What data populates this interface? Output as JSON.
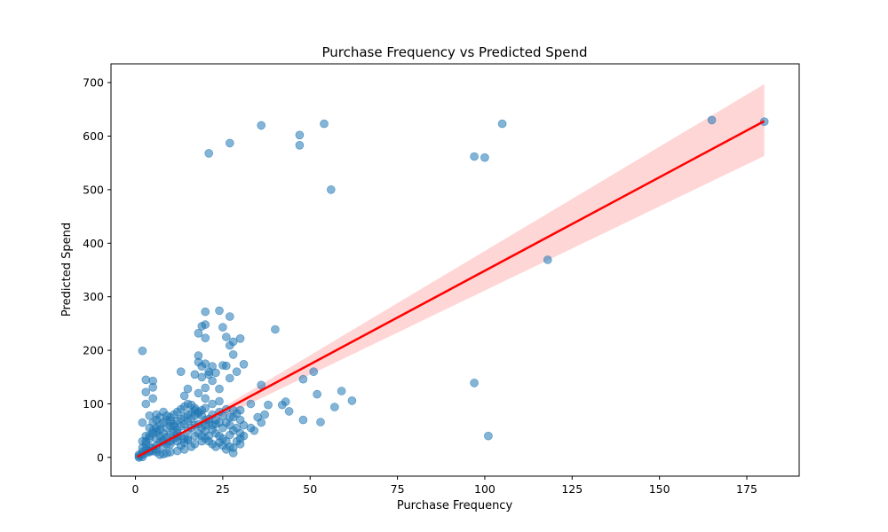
{
  "chart_data": {
    "type": "scatter",
    "title": "Purchase Frequency vs Predicted Spend",
    "xlabel": "Purchase Frequency",
    "ylabel": "Predicted Spend",
    "xlim": [
      -7,
      190
    ],
    "ylim": [
      -35,
      735
    ],
    "xticks": [
      0,
      25,
      50,
      75,
      100,
      125,
      150,
      175
    ],
    "yticks": [
      0,
      100,
      200,
      300,
      400,
      500,
      600,
      700
    ],
    "grid": false,
    "legend": "none",
    "point_color": "#1f77b4",
    "point_alpha": 0.55,
    "regression": {
      "color": "#ff0000",
      "band_color": "#ff9999",
      "x_start": 0.5,
      "x_end": 180,
      "y_start": 1,
      "y_end": 628,
      "ci_lower_end": 563,
      "ci_upper_end": 697
    },
    "series": [
      {
        "values": [
          [
            2,
            199
          ],
          [
            3,
            145
          ],
          [
            5,
            143
          ],
          [
            5,
            131
          ],
          [
            3,
            122
          ],
          [
            3,
            100
          ],
          [
            2,
            65
          ],
          [
            4,
            78
          ],
          [
            6,
            80
          ],
          [
            5,
            110
          ],
          [
            20,
            272
          ],
          [
            24,
            274
          ],
          [
            27,
            263
          ],
          [
            19,
            245
          ],
          [
            20,
            248
          ],
          [
            18,
            232
          ],
          [
            20,
            223
          ],
          [
            25,
            243
          ],
          [
            26,
            225
          ],
          [
            28,
            216
          ],
          [
            30,
            222
          ],
          [
            27,
            209
          ],
          [
            21,
            568
          ],
          [
            27,
            587
          ],
          [
            36,
            620
          ],
          [
            47,
            602
          ],
          [
            47,
            583
          ],
          [
            54,
            623
          ],
          [
            56,
            500
          ],
          [
            97,
            562
          ],
          [
            100,
            560
          ],
          [
            105,
            623
          ],
          [
            165,
            630
          ],
          [
            180,
            627
          ],
          [
            118,
            369
          ],
          [
            40,
            239
          ],
          [
            97,
            139
          ],
          [
            101,
            40
          ],
          [
            36,
            135
          ],
          [
            48,
            146
          ],
          [
            51,
            160
          ],
          [
            59,
            124
          ],
          [
            62,
            106
          ],
          [
            57,
            94
          ],
          [
            52,
            118
          ],
          [
            53,
            66
          ],
          [
            48,
            70
          ],
          [
            44,
            86
          ],
          [
            43,
            104
          ],
          [
            42,
            98
          ],
          [
            38,
            98
          ],
          [
            37,
            80
          ],
          [
            36,
            65
          ],
          [
            35,
            75
          ],
          [
            34,
            50
          ],
          [
            33,
            100
          ],
          [
            33,
            55
          ],
          [
            30,
            25
          ],
          [
            28,
            8
          ],
          [
            18,
            190
          ],
          [
            20,
            175
          ],
          [
            22,
            170
          ],
          [
            25,
            172
          ],
          [
            21,
            160
          ],
          [
            23,
            158
          ],
          [
            18,
            178
          ],
          [
            19,
            150
          ],
          [
            22,
            143
          ],
          [
            20,
            130
          ],
          [
            24,
            128
          ],
          [
            27,
            148
          ],
          [
            28,
            192
          ],
          [
            31,
            174
          ],
          [
            29,
            160
          ],
          [
            26,
            171
          ],
          [
            13,
            160
          ],
          [
            15,
            128
          ],
          [
            14,
            115
          ],
          [
            17,
            155
          ],
          [
            19,
            170
          ],
          [
            21,
            155
          ],
          [
            18,
            120
          ],
          [
            20,
            110
          ],
          [
            22,
            100
          ],
          [
            24,
            105
          ],
          [
            26,
            90
          ],
          [
            28,
            75
          ],
          [
            30,
            88
          ],
          [
            27,
            60
          ],
          [
            25,
            55
          ],
          [
            22,
            60
          ],
          [
            20,
            50
          ],
          [
            17,
            40
          ],
          [
            15,
            35
          ],
          [
            12,
            30
          ],
          [
            10,
            25
          ],
          [
            8,
            20
          ],
          [
            6,
            15
          ],
          [
            4,
            10
          ],
          [
            2,
            5
          ],
          [
            1,
            2
          ],
          [
            1,
            0
          ],
          [
            2,
            1
          ],
          [
            3,
            8
          ],
          [
            4,
            12
          ],
          [
            5,
            18
          ],
          [
            6,
            22
          ],
          [
            7,
            28
          ],
          [
            8,
            32
          ],
          [
            9,
            38
          ],
          [
            10,
            42
          ],
          [
            11,
            48
          ],
          [
            12,
            52
          ],
          [
            13,
            58
          ],
          [
            14,
            62
          ],
          [
            15,
            68
          ],
          [
            16,
            72
          ],
          [
            17,
            78
          ],
          [
            18,
            82
          ],
          [
            19,
            88
          ],
          [
            20,
            92
          ],
          [
            3,
            30
          ],
          [
            4,
            40
          ],
          [
            5,
            50
          ],
          [
            6,
            55
          ],
          [
            7,
            60
          ],
          [
            8,
            65
          ],
          [
            9,
            70
          ],
          [
            10,
            75
          ],
          [
            11,
            80
          ],
          [
            12,
            85
          ],
          [
            13,
            90
          ],
          [
            14,
            95
          ],
          [
            15,
            100
          ],
          [
            16,
            98
          ],
          [
            17,
            92
          ],
          [
            18,
            85
          ],
          [
            19,
            78
          ],
          [
            20,
            70
          ],
          [
            21,
            65
          ],
          [
            22,
            80
          ],
          [
            23,
            70
          ],
          [
            24,
            85
          ],
          [
            25,
            78
          ],
          [
            26,
            65
          ],
          [
            27,
            75
          ],
          [
            28,
            88
          ],
          [
            29,
            82
          ],
          [
            30,
            70
          ],
          [
            31,
            60
          ],
          [
            24,
            65
          ],
          [
            23,
            45
          ],
          [
            21,
            40
          ],
          [
            19,
            30
          ],
          [
            17,
            25
          ],
          [
            16,
            20
          ],
          [
            14,
            15
          ],
          [
            12,
            12
          ],
          [
            10,
            10
          ],
          [
            9,
            8
          ],
          [
            8,
            6
          ],
          [
            7,
            5
          ],
          [
            6,
            10
          ],
          [
            5,
            12
          ],
          [
            4,
            20
          ],
          [
            3,
            15
          ],
          [
            2,
            10
          ],
          [
            1,
            5
          ],
          [
            2,
            18
          ],
          [
            3,
            25
          ],
          [
            4,
            35
          ],
          [
            5,
            45
          ],
          [
            6,
            48
          ],
          [
            7,
            52
          ],
          [
            8,
            45
          ],
          [
            9,
            55
          ],
          [
            10,
            58
          ],
          [
            11,
            62
          ],
          [
            12,
            68
          ],
          [
            13,
            72
          ],
          [
            14,
            76
          ],
          [
            15,
            80
          ],
          [
            16,
            84
          ],
          [
            17,
            88
          ],
          [
            18,
            62
          ],
          [
            19,
            55
          ],
          [
            20,
            60
          ],
          [
            21,
            72
          ],
          [
            22,
            52
          ],
          [
            23,
            62
          ],
          [
            24,
            40
          ],
          [
            25,
            35
          ],
          [
            26,
            30
          ],
          [
            27,
            42
          ],
          [
            28,
            50
          ],
          [
            29,
            55
          ],
          [
            30,
            45
          ],
          [
            2,
            30
          ],
          [
            3,
            40
          ],
          [
            4,
            55
          ],
          [
            5,
            65
          ],
          [
            6,
            70
          ],
          [
            7,
            75
          ],
          [
            8,
            85
          ],
          [
            9,
            78
          ],
          [
            10,
            68
          ],
          [
            11,
            58
          ],
          [
            12,
            45
          ],
          [
            13,
            40
          ],
          [
            14,
            35
          ],
          [
            15,
            50
          ],
          [
            16,
            55
          ],
          [
            17,
            60
          ],
          [
            18,
            45
          ],
          [
            19,
            40
          ],
          [
            20,
            35
          ],
          [
            21,
            30
          ],
          [
            22,
            25
          ],
          [
            23,
            20
          ],
          [
            24,
            28
          ],
          [
            25,
            22
          ],
          [
            26,
            15
          ],
          [
            27,
            20
          ],
          [
            28,
            18
          ],
          [
            29,
            30
          ],
          [
            30,
            35
          ],
          [
            31,
            40
          ],
          [
            6,
            35
          ],
          [
            7,
            40
          ],
          [
            8,
            30
          ],
          [
            9,
            25
          ],
          [
            10,
            30
          ],
          [
            11,
            35
          ],
          [
            12,
            38
          ],
          [
            13,
            22
          ],
          [
            14,
            28
          ],
          [
            15,
            32
          ]
        ]
      }
    ]
  }
}
